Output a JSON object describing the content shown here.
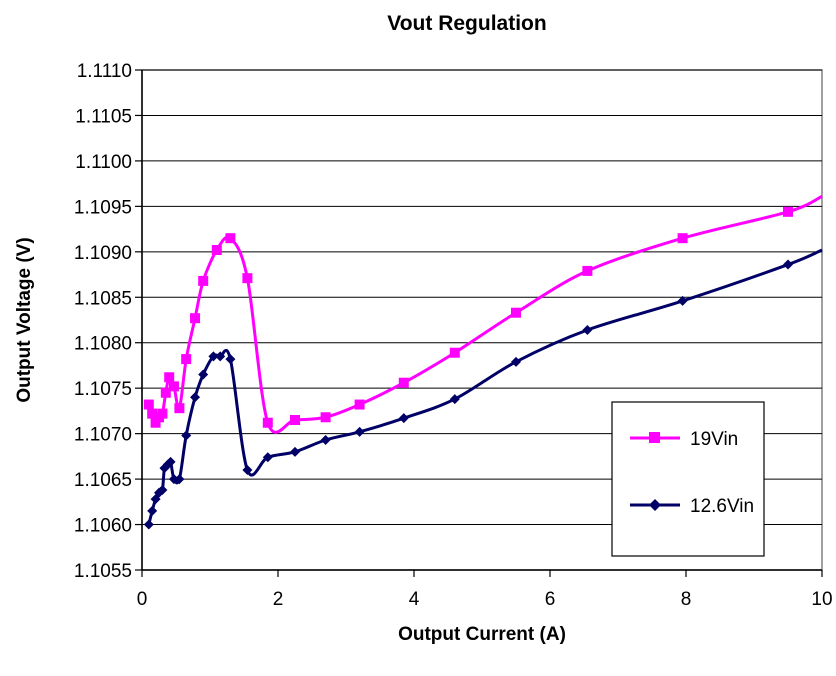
{
  "chart_data": {
    "type": "line",
    "title": "Vout Regulation",
    "xlabel": "Output Current (A)",
    "ylabel": "Output Voltage (V)",
    "xlim": [
      0,
      10
    ],
    "ylim": [
      1.1055,
      1.111
    ],
    "xticks": [
      "0",
      "2",
      "4",
      "6",
      "8",
      "10"
    ],
    "yticks": [
      "1.1055",
      "1.1060",
      "1.1065",
      "1.1070",
      "1.1075",
      "1.1080",
      "1.1085",
      "1.1090",
      "1.1095",
      "1.1100",
      "1.1105",
      "1.1110"
    ],
    "grid": "horizontal",
    "legend_position": "right",
    "series": [
      {
        "name": "19Vin",
        "color": "#ff00ff",
        "marker": "square",
        "points": [
          {
            "x": 0.1,
            "y": 1.10732
          },
          {
            "x": 0.15,
            "y": 1.10722
          },
          {
            "x": 0.2,
            "y": 1.10712
          },
          {
            "x": 0.25,
            "y": 1.10718
          },
          {
            "x": 0.3,
            "y": 1.10722
          },
          {
            "x": 0.35,
            "y": 1.10745
          },
          {
            "x": 0.4,
            "y": 1.10762
          },
          {
            "x": 0.47,
            "y": 1.10752
          },
          {
            "x": 0.55,
            "y": 1.10728
          },
          {
            "x": 0.65,
            "y": 1.10782
          },
          {
            "x": 0.78,
            "y": 1.10827
          },
          {
            "x": 0.9,
            "y": 1.10868
          },
          {
            "x": 1.1,
            "y": 1.10902
          },
          {
            "x": 1.3,
            "y": 1.10915
          },
          {
            "x": 1.55,
            "y": 1.10871
          },
          {
            "x": 1.85,
            "y": 1.10712
          },
          {
            "x": 2.25,
            "y": 1.10715
          },
          {
            "x": 2.7,
            "y": 1.10718
          },
          {
            "x": 3.2,
            "y": 1.10732
          },
          {
            "x": 3.85,
            "y": 1.10756
          },
          {
            "x": 4.6,
            "y": 1.10789
          },
          {
            "x": 5.5,
            "y": 1.10833
          },
          {
            "x": 6.55,
            "y": 1.10879
          },
          {
            "x": 7.95,
            "y": 1.10915
          },
          {
            "x": 9.5,
            "y": 1.10944
          },
          {
            "x": 10.0,
            "y": 1.10961
          }
        ]
      },
      {
        "name": "12.6Vin",
        "color": "#000066",
        "marker": "diamond",
        "points": [
          {
            "x": 0.1,
            "y": 1.106
          },
          {
            "x": 0.15,
            "y": 1.10615
          },
          {
            "x": 0.2,
            "y": 1.10628
          },
          {
            "x": 0.25,
            "y": 1.10635
          },
          {
            "x": 0.3,
            "y": 1.10638
          },
          {
            "x": 0.33,
            "y": 1.10662
          },
          {
            "x": 0.38,
            "y": 1.10666
          },
          {
            "x": 0.42,
            "y": 1.10669
          },
          {
            "x": 0.47,
            "y": 1.1065
          },
          {
            "x": 0.55,
            "y": 1.1065
          },
          {
            "x": 0.65,
            "y": 1.10698
          },
          {
            "x": 0.78,
            "y": 1.1074
          },
          {
            "x": 0.9,
            "y": 1.10765
          },
          {
            "x": 1.05,
            "y": 1.10785
          },
          {
            "x": 1.15,
            "y": 1.10785
          },
          {
            "x": 1.3,
            "y": 1.10782
          },
          {
            "x": 1.55,
            "y": 1.1066
          },
          {
            "x": 1.85,
            "y": 1.10674
          },
          {
            "x": 2.25,
            "y": 1.1068
          },
          {
            "x": 2.7,
            "y": 1.10693
          },
          {
            "x": 3.2,
            "y": 1.10702
          },
          {
            "x": 3.85,
            "y": 1.10717
          },
          {
            "x": 4.6,
            "y": 1.10738
          },
          {
            "x": 5.5,
            "y": 1.10779
          },
          {
            "x": 6.55,
            "y": 1.10814
          },
          {
            "x": 7.95,
            "y": 1.10846
          },
          {
            "x": 9.5,
            "y": 1.10886
          },
          {
            "x": 10.0,
            "y": 1.10902
          }
        ]
      }
    ]
  }
}
